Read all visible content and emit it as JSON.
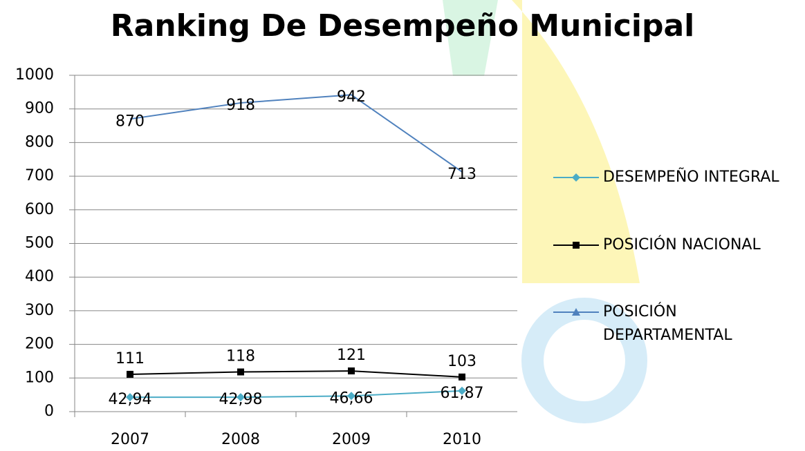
{
  "chart_data": {
    "type": "line",
    "title": "Ranking De Desempeño Municipal",
    "categories": [
      "2007",
      "2008",
      "2009",
      "2010"
    ],
    "series": [
      {
        "name": "DESEMPEÑO INTEGRAL",
        "color": "#4bacc6",
        "marker": "diamond",
        "values": [
          42.94,
          42.98,
          46.66,
          61.87
        ],
        "value_labels": [
          "42,94",
          "42,98",
          "46,66",
          "61,87"
        ]
      },
      {
        "name": "POSICIÓN NACIONAL",
        "color": "#000000",
        "marker": "square",
        "values": [
          111,
          118,
          121,
          103
        ]
      },
      {
        "name": "POSICIÓN DEPARTAMENTAL",
        "color": "#4f81bd",
        "marker": "triangle",
        "values": [
          870,
          918,
          942,
          713
        ]
      }
    ],
    "ylim": [
      0,
      1000
    ],
    "yticks": [
      0,
      100,
      200,
      300,
      400,
      500,
      600,
      700,
      800,
      900,
      1000
    ],
    "grid": true,
    "legend": "right"
  }
}
